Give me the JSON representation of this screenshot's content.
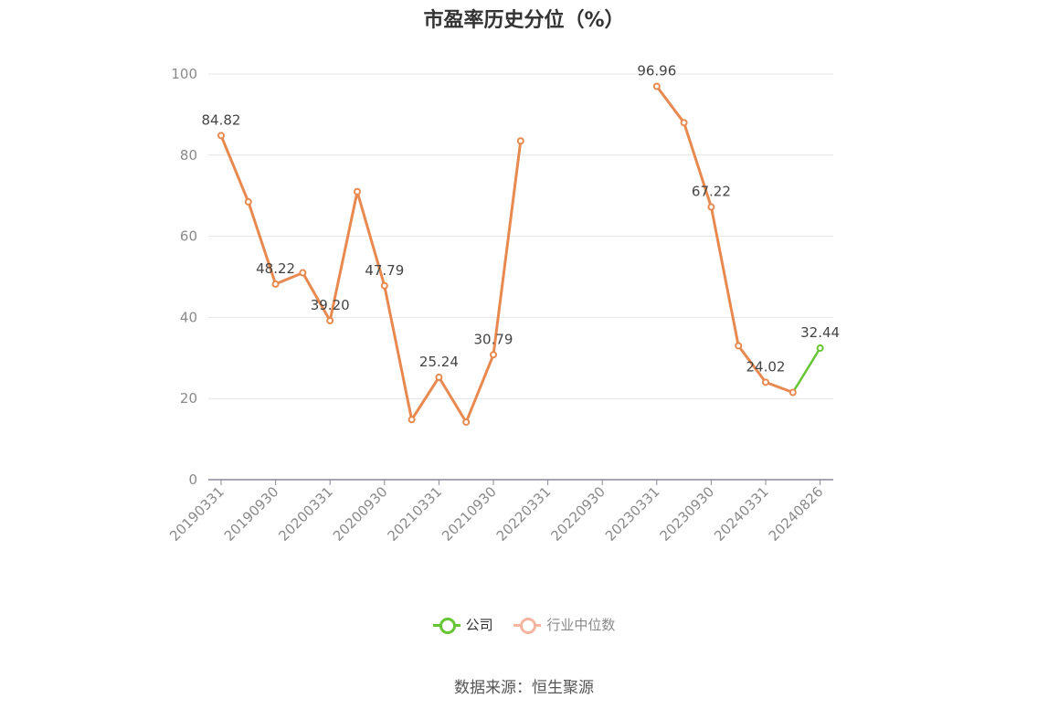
{
  "colors": {
    "company": "#66c532",
    "industry": "#e8894f",
    "industry_legend": "#f5b5a0",
    "grid": "#e4e4e8",
    "axis": "#888899"
  },
  "legend": {
    "company_label": "公司",
    "industry_label": "行业中位数"
  },
  "source": "数据来源：恒生聚源",
  "chart_data": {
    "type": "line",
    "title": "市盈率历史分位（%）",
    "xlabel": "",
    "ylabel": "",
    "ylim": [
      0,
      100
    ],
    "y_ticks": [
      0,
      20,
      40,
      60,
      80,
      100
    ],
    "grid": true,
    "legend_position": "bottom",
    "x_labels": [
      "20190331",
      "20190930",
      "20200331",
      "20200930",
      "20210331",
      "20210930",
      "20220331",
      "20220930",
      "20230331",
      "20230930",
      "20240331",
      "20240826"
    ],
    "industry_series": {
      "name": "行业中位数",
      "segments": [
        [
          [
            0,
            84.82
          ],
          [
            1,
            68.5
          ],
          [
            2,
            48.22
          ],
          [
            3,
            51.0
          ],
          [
            4,
            39.2
          ],
          [
            5,
            71.0
          ],
          [
            6,
            47.79
          ],
          [
            7,
            14.8
          ],
          [
            8,
            25.24
          ],
          [
            9,
            14.2
          ],
          [
            10,
            30.79
          ],
          [
            11,
            83.5
          ]
        ],
        [
          [
            16,
            96.96
          ],
          [
            17,
            88.0
          ],
          [
            18,
            67.22
          ],
          [
            19,
            33.0
          ],
          [
            20,
            24.02
          ],
          [
            21,
            21.5
          ]
        ]
      ]
    },
    "company_series": {
      "name": "公司",
      "points": [
        [
          21,
          21.5
        ],
        [
          22,
          32.44
        ]
      ]
    },
    "data_labels": [
      {
        "i": 0,
        "v": 84.82,
        "text": "84.82"
      },
      {
        "i": 2,
        "v": 48.22,
        "text": "48.22"
      },
      {
        "i": 4,
        "v": 39.2,
        "text": "39.20"
      },
      {
        "i": 6,
        "v": 47.79,
        "text": "47.79"
      },
      {
        "i": 8,
        "v": 25.24,
        "text": "25.24"
      },
      {
        "i": 10,
        "v": 30.79,
        "text": "30.79"
      },
      {
        "i": 16,
        "v": 96.96,
        "text": "96.96"
      },
      {
        "i": 18,
        "v": 67.22,
        "text": "67.22"
      },
      {
        "i": 20,
        "v": 24.02,
        "text": "24.02"
      },
      {
        "i": 22,
        "v": 32.44,
        "text": "32.44"
      }
    ]
  }
}
